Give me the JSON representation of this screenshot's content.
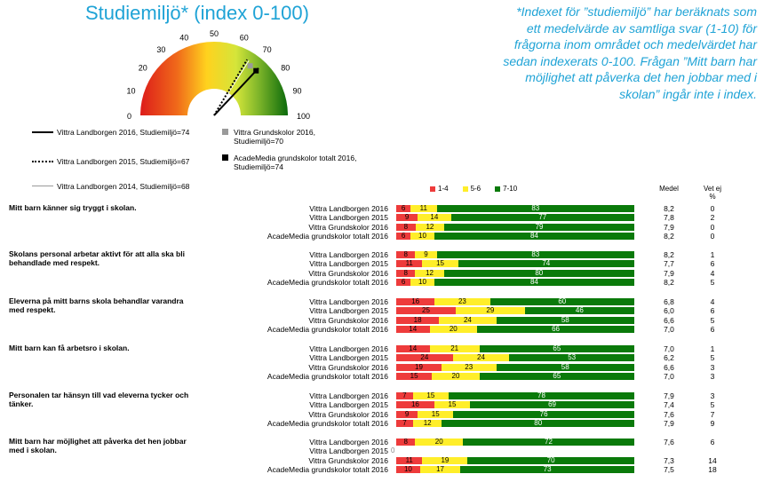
{
  "title": "Studiemiljö* (index 0-100)",
  "note": "*Indexet för ”studiemiljö” har beräknats som ett medelvärde av samtliga svar (1-10) för frågorna inom området och medelvärdet har sedan indexerats 0-100. Frågan ”Mitt barn har möjlighet att påverka det hen jobbar med i skolan” ingår inte i index.",
  "gauge": {
    "ticks": [
      "0",
      "10",
      "20",
      "30",
      "40",
      "50",
      "60",
      "70",
      "80",
      "90",
      "100"
    ],
    "min": 0,
    "max": 100,
    "markers": [
      {
        "label": "Vittra Landborgen 2016, Studiemiljö=74",
        "value": 74,
        "style": "solid"
      },
      {
        "label": "Vittra Landborgen 2015, Studiemiljö=67",
        "value": 67,
        "style": "dotted"
      },
      {
        "label": "Vittra Landborgen 2014, Studiemiljö=68",
        "value": 68,
        "style": "thin"
      },
      {
        "label": "Vittra Grundskolor 2016, Studiemiljö=70",
        "value": 70,
        "style": "grey-square"
      },
      {
        "label": "AcadeMedia grundskolor totalt 2016, Studiemiljö=74",
        "value": 74,
        "style": "black-square"
      }
    ],
    "colors": {
      "low": "#e8201b",
      "mid": "#ffd700",
      "high": "#d6e63a",
      "top": "#0a6e0a"
    }
  },
  "chart_data": {
    "type": "bar",
    "stacked": true,
    "legend": [
      {
        "name": "1-4",
        "color": "#ee3b3b"
      },
      {
        "name": "5-6",
        "color": "#ffee2a"
      },
      {
        "name": "7-10",
        "color": "#0a7a0a"
      }
    ],
    "col_medel": "Medel",
    "col_vetej": "Vet ej %",
    "questions": [
      {
        "title": "Mitt barn känner sig tryggt i skolan.",
        "rows": [
          {
            "label": "Vittra Landborgen 2016",
            "values": [
              6,
              11,
              83
            ],
            "medel": "8,2",
            "vetej": "0"
          },
          {
            "label": "Vittra Landborgen 2015",
            "values": [
              9,
              14,
              77
            ],
            "medel": "7,8",
            "vetej": "2"
          },
          {
            "label": "Vittra Grundskolor 2016",
            "values": [
              8,
              12,
              79
            ],
            "medel": "7,9",
            "vetej": "0"
          },
          {
            "label": "AcadeMedia grundskolor totalt 2016",
            "values": [
              6,
              10,
              84
            ],
            "medel": "8,2",
            "vetej": "0"
          }
        ]
      },
      {
        "title": "Skolans personal arbetar aktivt för att alla ska bli behandlade med respekt.",
        "rows": [
          {
            "label": "Vittra Landborgen 2016",
            "values": [
              8,
              9,
              83
            ],
            "medel": "8,2",
            "vetej": "1"
          },
          {
            "label": "Vittra Landborgen 2015",
            "values": [
              11,
              15,
              74
            ],
            "medel": "7,7",
            "vetej": "6"
          },
          {
            "label": "Vittra Grundskolor 2016",
            "values": [
              8,
              12,
              80
            ],
            "medel": "7,9",
            "vetej": "4"
          },
          {
            "label": "AcadeMedia grundskolor totalt 2016",
            "values": [
              6,
              10,
              84
            ],
            "medel": "8,2",
            "vetej": "5"
          }
        ]
      },
      {
        "title": "Eleverna på mitt barns skola behandlar varandra med respekt.",
        "rows": [
          {
            "label": "Vittra Landborgen 2016",
            "values": [
              16,
              23,
              60
            ],
            "medel": "6,8",
            "vetej": "4"
          },
          {
            "label": "Vittra Landborgen 2015",
            "values": [
              25,
              29,
              46
            ],
            "medel": "6,0",
            "vetej": "6"
          },
          {
            "label": "Vittra Grundskolor 2016",
            "values": [
              18,
              24,
              58
            ],
            "medel": "6,6",
            "vetej": "5"
          },
          {
            "label": "AcadeMedia grundskolor totalt 2016",
            "values": [
              14,
              20,
              66
            ],
            "medel": "7,0",
            "vetej": "6"
          }
        ]
      },
      {
        "title": "Mitt barn kan få arbetsro i skolan.",
        "rows": [
          {
            "label": "Vittra Landborgen 2016",
            "values": [
              14,
              21,
              65
            ],
            "medel": "7,0",
            "vetej": "1"
          },
          {
            "label": "Vittra Landborgen 2015",
            "values": [
              24,
              24,
              53
            ],
            "medel": "6,2",
            "vetej": "5"
          },
          {
            "label": "Vittra Grundskolor 2016",
            "values": [
              19,
              23,
              58
            ],
            "medel": "6,6",
            "vetej": "3"
          },
          {
            "label": "AcadeMedia grundskolor totalt 2016",
            "values": [
              15,
              20,
              65
            ],
            "medel": "7,0",
            "vetej": "3"
          }
        ]
      },
      {
        "title": "Personalen tar hänsyn till vad eleverna tycker och tänker.",
        "rows": [
          {
            "label": "Vittra Landborgen 2016",
            "values": [
              7,
              15,
              78
            ],
            "medel": "7,9",
            "vetej": "3"
          },
          {
            "label": "Vittra Landborgen 2015",
            "values": [
              16,
              15,
              69
            ],
            "medel": "7,4",
            "vetej": "5"
          },
          {
            "label": "Vittra Grundskolor 2016",
            "values": [
              9,
              15,
              76
            ],
            "medel": "7,6",
            "vetej": "7"
          },
          {
            "label": "AcadeMedia grundskolor totalt 2016",
            "values": [
              7,
              12,
              80
            ],
            "medel": "7,9",
            "vetej": "9"
          }
        ]
      },
      {
        "title": "Mitt barn har möjlighet att påverka det hen jobbar med i skolan.",
        "rows": [
          {
            "label": "Vittra Landborgen 2016",
            "values": [
              8,
              20,
              72
            ],
            "medel": "7,6",
            "vetej": "6"
          },
          {
            "label": "Vittra Landborgen 2015",
            "values": [
              0,
              0,
              0
            ],
            "zero_label": "0",
            "medel": "",
            "vetej": ""
          },
          {
            "label": "Vittra Grundskolor 2016",
            "values": [
              11,
              19,
              70
            ],
            "medel": "7,3",
            "vetej": "14"
          },
          {
            "label": "AcadeMedia grundskolor totalt 2016",
            "values": [
              10,
              17,
              73
            ],
            "medel": "7,5",
            "vetej": "18"
          }
        ]
      }
    ]
  }
}
